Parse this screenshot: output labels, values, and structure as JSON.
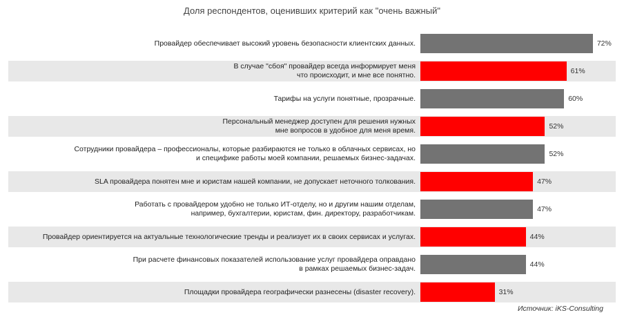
{
  "chart_data": {
    "type": "bar",
    "orientation": "horizontal",
    "title": "Доля респондентов, оценивших критерий как \"очень важный\"",
    "source": "Источник: iKS-Consulting",
    "colors": {
      "gray": "#737373",
      "red": "#ff0000",
      "row_shade": "#e8e8e8"
    },
    "items": [
      {
        "label": "Провайдер обеспечивает высокий уровень безопасности клиентских данных.",
        "value": 72,
        "value_label": "72%",
        "color": "gray",
        "shaded": false
      },
      {
        "label": "В случае \"сбоя\" провайдер всегда информирует меня\nчто происходит, и мне все понятно.",
        "value": 61,
        "value_label": "61%",
        "color": "red",
        "shaded": true
      },
      {
        "label": "Тарифы на услуги понятные, прозрачные.",
        "value": 60,
        "value_label": "60%",
        "color": "gray",
        "shaded": false
      },
      {
        "label": "Персональный менеджер доступен для решения нужных\nмне вопросов в удобное для меня время.",
        "value": 52,
        "value_label": "52%",
        "color": "red",
        "shaded": true
      },
      {
        "label": "Сотрудники провайдера – профессионалы, которые разбираются не только в облачных сервисах, но\nи специфике работы моей компании, решаемых бизнес-задачах.",
        "value": 52,
        "value_label": "52%",
        "color": "gray",
        "shaded": false
      },
      {
        "label": "SLA провайдера понятен мне и юристам нашей компании, не допускает неточного толкования.",
        "value": 47,
        "value_label": "47%",
        "color": "red",
        "shaded": true
      },
      {
        "label": "Работать с провайдером удобно не только ИТ-отделу, но и другим нашим отделам,\nнапример, бухгалтерии, юристам, фин. директору, разработчикам.",
        "value": 47,
        "value_label": "47%",
        "color": "gray",
        "shaded": false
      },
      {
        "label": "Провайдер ориентируется на актуальные технологические тренды и реализует их в своих сервисах и услугах.",
        "value": 44,
        "value_label": "44%",
        "color": "red",
        "shaded": true
      },
      {
        "label": "При расчете финансовых показателей использование услуг провайдера оправдано\nв рамках решаемых бизнес-задач.",
        "value": 44,
        "value_label": "44%",
        "color": "gray",
        "shaded": false
      },
      {
        "label": "Площадки провайдера географически разнесены (disaster recovery).",
        "value": 31,
        "value_label": "31%",
        "color": "red",
        "shaded": true
      }
    ]
  }
}
